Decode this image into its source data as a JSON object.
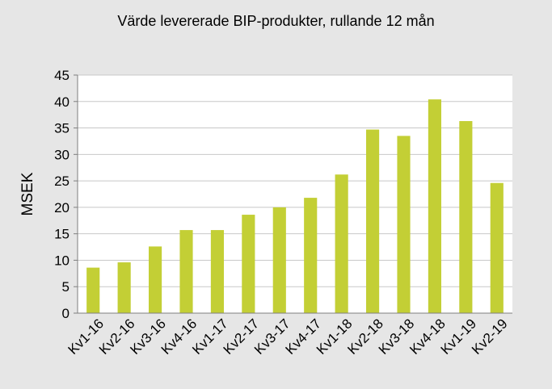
{
  "colors": {
    "background": "#e6e6e6",
    "plot_background": "#ffffff",
    "gridline": "#c8c8c8",
    "bar": "#c3cf35",
    "axis": "#7f7f7f",
    "text": "#000000"
  },
  "chart_data": {
    "type": "bar",
    "title": "Värde levererade BIP-produkter, rullande  12 mån",
    "xlabel": "",
    "ylabel": "MSEK",
    "ylim": [
      0,
      45
    ],
    "yticks": [
      0,
      5,
      10,
      15,
      20,
      25,
      30,
      35,
      40,
      45
    ],
    "ytick_labels": [
      "0",
      "5",
      "10",
      "15",
      "20",
      "25",
      "30",
      "35",
      "40",
      "45"
    ],
    "grid": true,
    "legend": "none",
    "categories": [
      "Kv1-16",
      "Kv2-16",
      "Kv3-16",
      "Kv4-16",
      "Kv1-17",
      "Kv2-17",
      "Kv3-17",
      "Kv4-17",
      "Kv1-18",
      "Kv2-18",
      "Kv3-18",
      "Kv4-18",
      "Kv1-19",
      "Kv2-19"
    ],
    "values": [
      8.6,
      9.6,
      12.6,
      15.7,
      15.7,
      18.6,
      20.0,
      21.8,
      26.2,
      34.7,
      33.5,
      40.4,
      36.3,
      24.6
    ]
  }
}
